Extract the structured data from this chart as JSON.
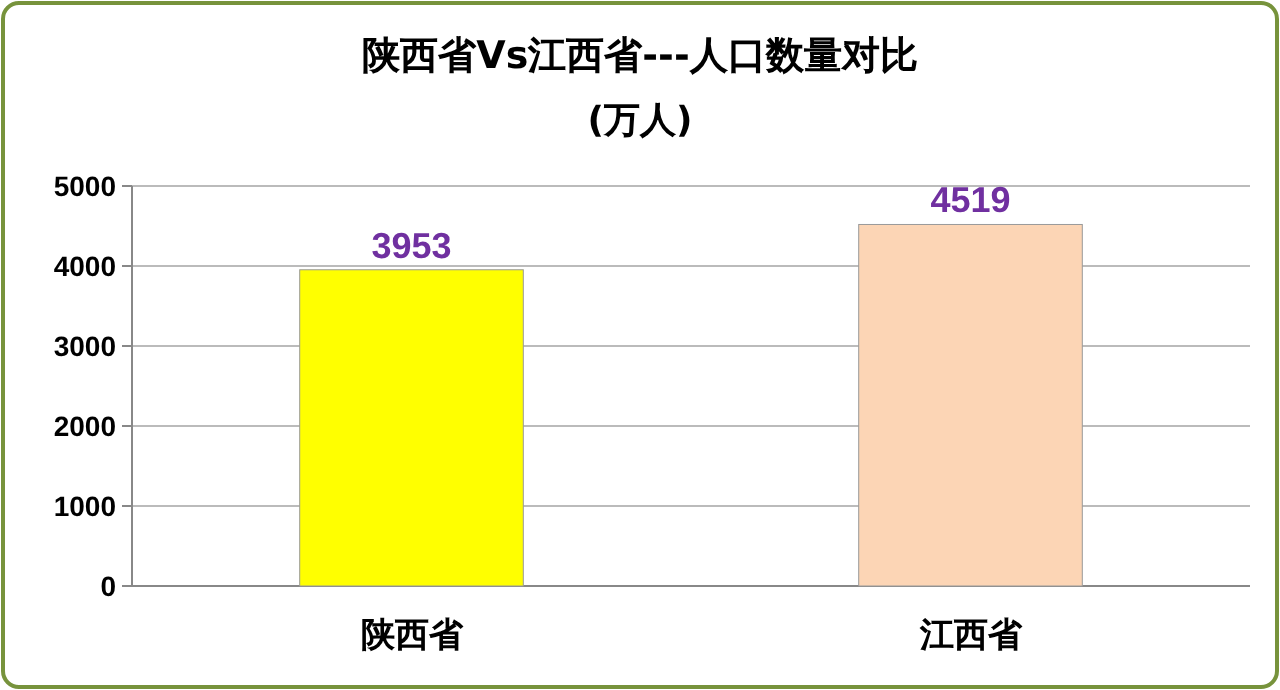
{
  "chart_data": {
    "type": "bar",
    "title": "陕西省Vs江西省---人口数量对比",
    "subtitle": "(万人)",
    "categories": [
      "陕西省",
      "江西省"
    ],
    "values": [
      3953,
      4519
    ],
    "colors": [
      "#ffff00",
      "#fcd5b5"
    ],
    "ylim": [
      0,
      5000
    ],
    "yticks": [
      0,
      1000,
      2000,
      3000,
      4000,
      5000
    ],
    "grid": "y",
    "data_labels": true
  }
}
